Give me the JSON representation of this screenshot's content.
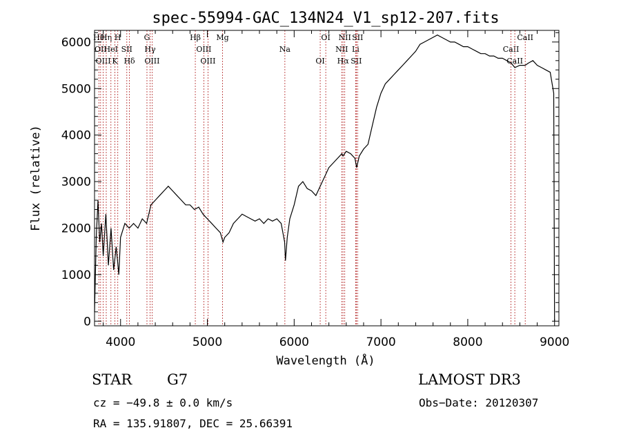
{
  "chart_data": {
    "type": "line",
    "title": "spec-55994-GAC_134N24_V1_sp12-207.fits",
    "xlabel": "Wavelength (Å)",
    "ylabel": "Flux (relative)",
    "xlim": [
      3700,
      9050
    ],
    "ylim": [
      -100,
      6250
    ],
    "xticks": [
      4000,
      5000,
      6000,
      7000,
      8000,
      9000
    ],
    "yticks": [
      0,
      1000,
      2000,
      3000,
      4000,
      5000,
      6000
    ],
    "series": [
      {
        "name": "flux",
        "x": [
          3700,
          3720,
          3740,
          3760,
          3780,
          3800,
          3830,
          3860,
          3890,
          3920,
          3950,
          3980,
          4000,
          4050,
          4100,
          4150,
          4200,
          4250,
          4300,
          4350,
          4400,
          4450,
          4500,
          4550,
          4600,
          4650,
          4700,
          4750,
          4800,
          4850,
          4900,
          4950,
          5000,
          5050,
          5100,
          5150,
          5180,
          5200,
          5250,
          5300,
          5350,
          5400,
          5450,
          5500,
          5550,
          5600,
          5650,
          5700,
          5750,
          5800,
          5850,
          5890,
          5900,
          5920,
          5950,
          6000,
          6050,
          6100,
          6150,
          6200,
          6250,
          6300,
          6350,
          6400,
          6450,
          6500,
          6550,
          6563,
          6600,
          6650,
          6700,
          6720,
          6750,
          6800,
          6850,
          6900,
          6950,
          7000,
          7050,
          7100,
          7150,
          7200,
          7250,
          7300,
          7350,
          7400,
          7450,
          7500,
          7550,
          7600,
          7650,
          7700,
          7750,
          7800,
          7850,
          7900,
          7950,
          8000,
          8050,
          8100,
          8150,
          8200,
          8250,
          8300,
          8350,
          8400,
          8450,
          8500,
          8542,
          8600,
          8662,
          8700,
          8750,
          8800,
          8850,
          8900,
          8950,
          8990,
          9000
        ],
        "y": [
          200,
          1800,
          2600,
          1700,
          2100,
          1400,
          2300,
          1200,
          2000,
          1100,
          1600,
          1000,
          1800,
          2100,
          2000,
          2100,
          2000,
          2200,
          2100,
          2500,
          2600,
          2700,
          2800,
          2900,
          2800,
          2700,
          2600,
          2500,
          2500,
          2400,
          2450,
          2300,
          2200,
          2100,
          2000,
          1900,
          1700,
          1800,
          1900,
          2100,
          2200,
          2300,
          2250,
          2200,
          2150,
          2200,
          2100,
          2200,
          2150,
          2200,
          2100,
          1700,
          1300,
          1800,
          2200,
          2500,
          2900,
          3000,
          2850,
          2800,
          2700,
          2900,
          3100,
          3300,
          3400,
          3500,
          3600,
          3550,
          3650,
          3600,
          3500,
          3300,
          3550,
          3700,
          3800,
          4200,
          4600,
          4900,
          5100,
          5200,
          5300,
          5400,
          5500,
          5600,
          5700,
          5800,
          5950,
          6000,
          6050,
          6100,
          6150,
          6100,
          6050,
          6000,
          6000,
          5950,
          5900,
          5900,
          5850,
          5800,
          5750,
          5750,
          5700,
          5700,
          5650,
          5650,
          5600,
          5550,
          5450,
          5500,
          5500,
          5550,
          5600,
          5500,
          5450,
          5400,
          5350,
          4900,
          0
        ]
      }
    ],
    "lines": [
      {
        "x": 3750,
        "label": "Hθ"
      },
      {
        "x": 3770,
        "label": "OII"
      },
      {
        "x": 3800,
        "label": "OIII"
      },
      {
        "x": 3835,
        "label": "Hη"
      },
      {
        "x": 3889,
        "label": "HeI"
      },
      {
        "x": 3934,
        "label": "K"
      },
      {
        "x": 3968,
        "label": "H"
      },
      {
        "x": 4072,
        "label": "SII"
      },
      {
        "x": 4102,
        "label": "Hδ"
      },
      {
        "x": 4304,
        "label": "G"
      },
      {
        "x": 4340,
        "label": "Hγ"
      },
      {
        "x": 4363,
        "label": "OIII"
      },
      {
        "x": 4861,
        "label": "Hβ"
      },
      {
        "x": 4959,
        "label": "OIII"
      },
      {
        "x": 5007,
        "label": "OIII"
      },
      {
        "x": 5175,
        "label": "Mg"
      },
      {
        "x": 5893,
        "label": "Na"
      },
      {
        "x": 6300,
        "label": "OI"
      },
      {
        "x": 6364,
        "label": "OI"
      },
      {
        "x": 6548,
        "label": "NII"
      },
      {
        "x": 6563,
        "label": "Hα"
      },
      {
        "x": 6583,
        "label": "NII"
      },
      {
        "x": 6708,
        "label": "Li"
      },
      {
        "x": 6716,
        "label": "SII"
      },
      {
        "x": 6731,
        "label": "SII"
      },
      {
        "x": 8498,
        "label": "CaII"
      },
      {
        "x": 8542,
        "label": "CaII"
      },
      {
        "x": 8662,
        "label": "CaII"
      }
    ]
  },
  "info": {
    "class": "STAR",
    "subclass": "G7",
    "release": "LAMOST DR3",
    "cz": "cz = −49.8 ± 0.0 km/s",
    "obsdate": "Obs−Date: 20120307",
    "radec": "RA = 135.91807, DEC =  25.66391"
  }
}
